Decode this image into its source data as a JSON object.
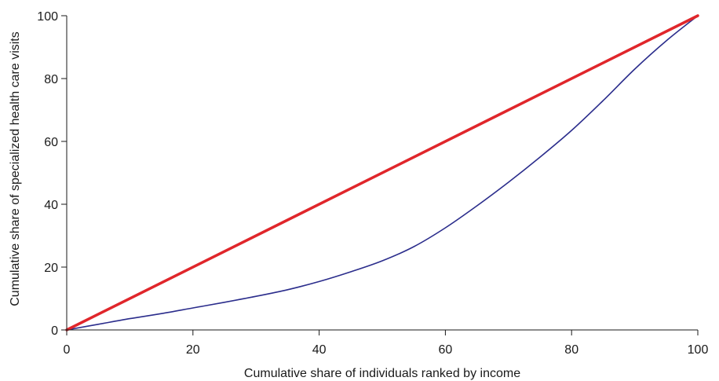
{
  "chart_data": {
    "type": "line",
    "title": "",
    "xlabel": "Cumulative share of individuals ranked by income",
    "ylabel": "Cumulative share of specialized health care visits",
    "xlim": [
      0,
      100
    ],
    "ylim": [
      0,
      100
    ],
    "x_ticks": [
      "0",
      "20",
      "40",
      "60",
      "80",
      "100"
    ],
    "y_ticks": [
      "0",
      "20",
      "40",
      "60",
      "80",
      "100"
    ],
    "grid": false,
    "legend": "none",
    "series": [
      {
        "color": "#e0262b",
        "points": [
          [
            0,
            0
          ],
          [
            100,
            100
          ]
        ]
      },
      {
        "color": "#2b2d8c",
        "points": [
          [
            0,
            0
          ],
          [
            5,
            1.8
          ],
          [
            10,
            3.6
          ],
          [
            15,
            5.2
          ],
          [
            20,
            7.0
          ],
          [
            25,
            8.8
          ],
          [
            30,
            10.7
          ],
          [
            35,
            12.8
          ],
          [
            40,
            15.4
          ],
          [
            45,
            18.5
          ],
          [
            50,
            22.0
          ],
          [
            55,
            26.5
          ],
          [
            60,
            32.5
          ],
          [
            65,
            39.5
          ],
          [
            70,
            47.0
          ],
          [
            75,
            55.0
          ],
          [
            80,
            63.5
          ],
          [
            85,
            73.0
          ],
          [
            90,
            83.0
          ],
          [
            95,
            92.0
          ],
          [
            100,
            100
          ]
        ]
      }
    ]
  }
}
